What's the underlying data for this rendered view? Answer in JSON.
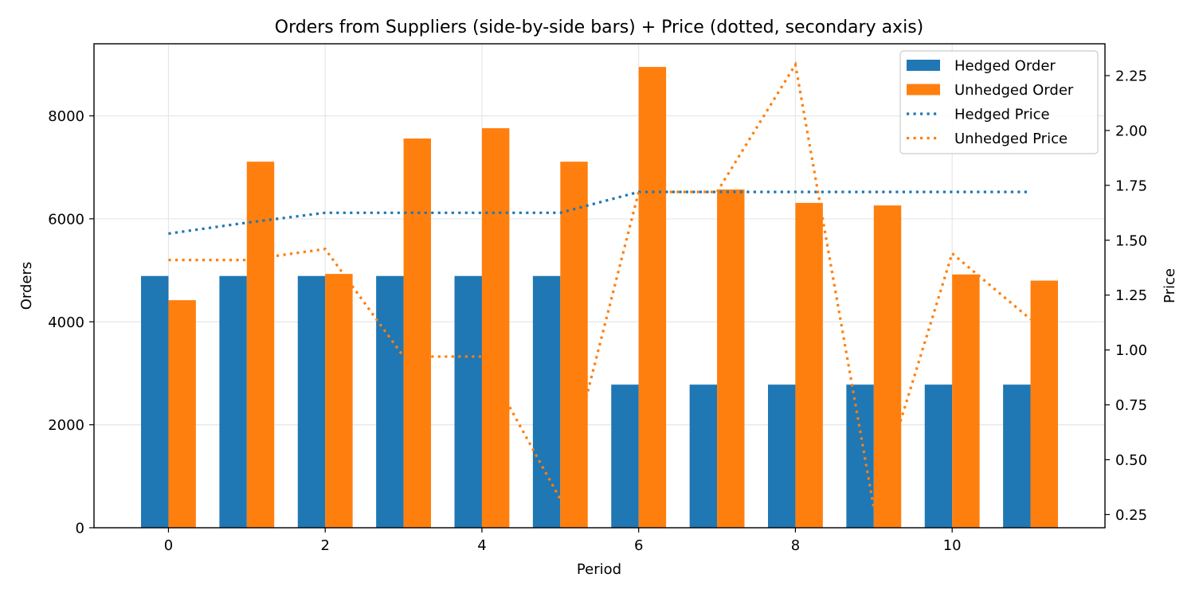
{
  "chart_data": {
    "type": "bar",
    "title": "Orders from Suppliers (side-by-side bars) + Price (dotted, secondary axis)",
    "xlabel": "Period",
    "ylabel": "Orders",
    "y2label": "Price",
    "x": [
      0,
      1,
      2,
      3,
      4,
      5,
      6,
      7,
      8,
      9,
      10,
      11
    ],
    "xlim": [
      -0.95,
      11.95
    ],
    "ylim": [
      0,
      9400
    ],
    "y2lim": [
      0.19,
      2.395
    ],
    "x_ticks": [
      0,
      2,
      4,
      6,
      8,
      10
    ],
    "y_ticks": [
      0,
      2000,
      4000,
      6000,
      8000
    ],
    "y2_ticks": [
      0.25,
      0.5,
      0.75,
      1.0,
      1.25,
      1.5,
      1.75,
      2.0,
      2.25
    ],
    "x_tick_labels": [
      "0",
      "2",
      "4",
      "6",
      "8",
      "10"
    ],
    "y_tick_labels": [
      "0",
      "2000",
      "4000",
      "6000",
      "8000"
    ],
    "y2_tick_labels": [
      "0.25",
      "0.50",
      "0.75",
      "1.00",
      "1.25",
      "1.50",
      "1.75",
      "2.00",
      "2.25"
    ],
    "grid": true,
    "legend_position": "top-right",
    "bar_series": [
      {
        "name": "Hedged Order",
        "color": "#1f77b4",
        "values": [
          4890,
          4890,
          4890,
          4890,
          4890,
          4890,
          2780,
          2780,
          2780,
          2780,
          2780,
          2780
        ]
      },
      {
        "name": "Unhedged Order",
        "color": "#ff7f0e",
        "values": [
          4420,
          7110,
          4930,
          7560,
          7760,
          7110,
          8950,
          6570,
          6310,
          6260,
          4920,
          4800
        ]
      }
    ],
    "line_series": [
      {
        "name": "Hedged Price",
        "color": "#1f77b4",
        "style": "dotted",
        "axis": "secondary",
        "values": [
          1.53,
          1.58,
          1.625,
          1.625,
          1.625,
          1.625,
          1.72,
          1.72,
          1.72,
          1.72,
          1.72,
          1.72
        ]
      },
      {
        "name": "Unhedged Price",
        "color": "#ff7f0e",
        "style": "dotted",
        "axis": "secondary",
        "values": [
          1.41,
          1.41,
          1.46,
          0.97,
          0.97,
          0.32,
          1.72,
          1.72,
          2.3,
          0.28,
          1.44,
          1.14
        ]
      }
    ]
  }
}
